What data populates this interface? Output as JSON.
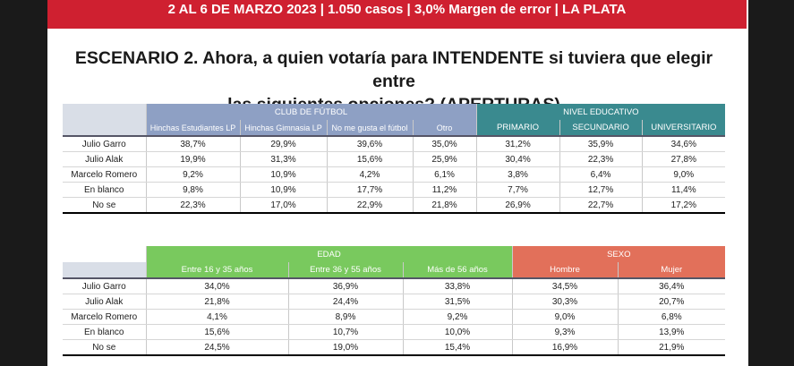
{
  "banner": "2 AL 6 DE MARZO 2023 | 1.050 casos  |  3,0% Margen de error  | LA PLATA",
  "title_line1": "ESCENARIO 2. Ahora, a quien votaría para INTENDENTE  si tuviera que elegir entre",
  "title_line2": "las siguientes opciones? (APERTURAS)",
  "colors": {
    "banner": "#cf2030",
    "club": "#8ea0c4",
    "nivel": "#3a8a8f",
    "edad": "#79c95e",
    "sexo": "#e2705a"
  },
  "table1": {
    "group1": "CLUB DE FÚTBOL",
    "group2": "NIVEL EDUCATIVO",
    "columns": [
      "Hinchas  Estudiantes LP",
      "Hinchas  Gimnasia LP",
      "No me gusta el fútbol",
      "Otro",
      "PRIMARIO",
      "SECUNDARIO",
      "UNIVERSITARIO"
    ],
    "rows": [
      {
        "label": "Julio Garro",
        "values": [
          "38,7%",
          "29,9%",
          "39,6%",
          "35,0%",
          "31,2%",
          "35,9%",
          "34,6%"
        ]
      },
      {
        "label": "Julio Alak",
        "values": [
          "19,9%",
          "31,3%",
          "15,6%",
          "25,9%",
          "30,4%",
          "22,3%",
          "27,8%"
        ]
      },
      {
        "label": "Marcelo Romero",
        "values": [
          "9,2%",
          "10,9%",
          "4,2%",
          "6,1%",
          "3,8%",
          "6,4%",
          "9,0%"
        ]
      },
      {
        "label": "En blanco",
        "values": [
          "9,8%",
          "10,9%",
          "17,7%",
          "11,2%",
          "7,7%",
          "12,7%",
          "11,4%"
        ]
      },
      {
        "label": "No se",
        "values": [
          "22,3%",
          "17,0%",
          "22,9%",
          "21,8%",
          "26,9%",
          "22,7%",
          "17,2%"
        ]
      }
    ]
  },
  "table2": {
    "group1": "EDAD",
    "group2": "SEXO",
    "columns": [
      "Entre 16 y 35 años",
      "Entre 36 y 55 años",
      "Más de 56 años",
      "Hombre",
      "Mujer"
    ],
    "rows": [
      {
        "label": "Julio Garro",
        "values": [
          "34,0%",
          "36,9%",
          "33,8%",
          "34,5%",
          "36,4%"
        ]
      },
      {
        "label": "Julio Alak",
        "values": [
          "21,8%",
          "24,4%",
          "31,5%",
          "30,3%",
          "20,7%"
        ]
      },
      {
        "label": "Marcelo Romero",
        "values": [
          "4,1%",
          "8,9%",
          "9,2%",
          "9,0%",
          "6,8%"
        ]
      },
      {
        "label": "En blanco",
        "values": [
          "15,6%",
          "10,7%",
          "10,0%",
          "9,3%",
          "13,9%"
        ]
      },
      {
        "label": "No se",
        "values": [
          "24,5%",
          "19,0%",
          "15,4%",
          "16,9%",
          "21,9%"
        ]
      }
    ]
  }
}
